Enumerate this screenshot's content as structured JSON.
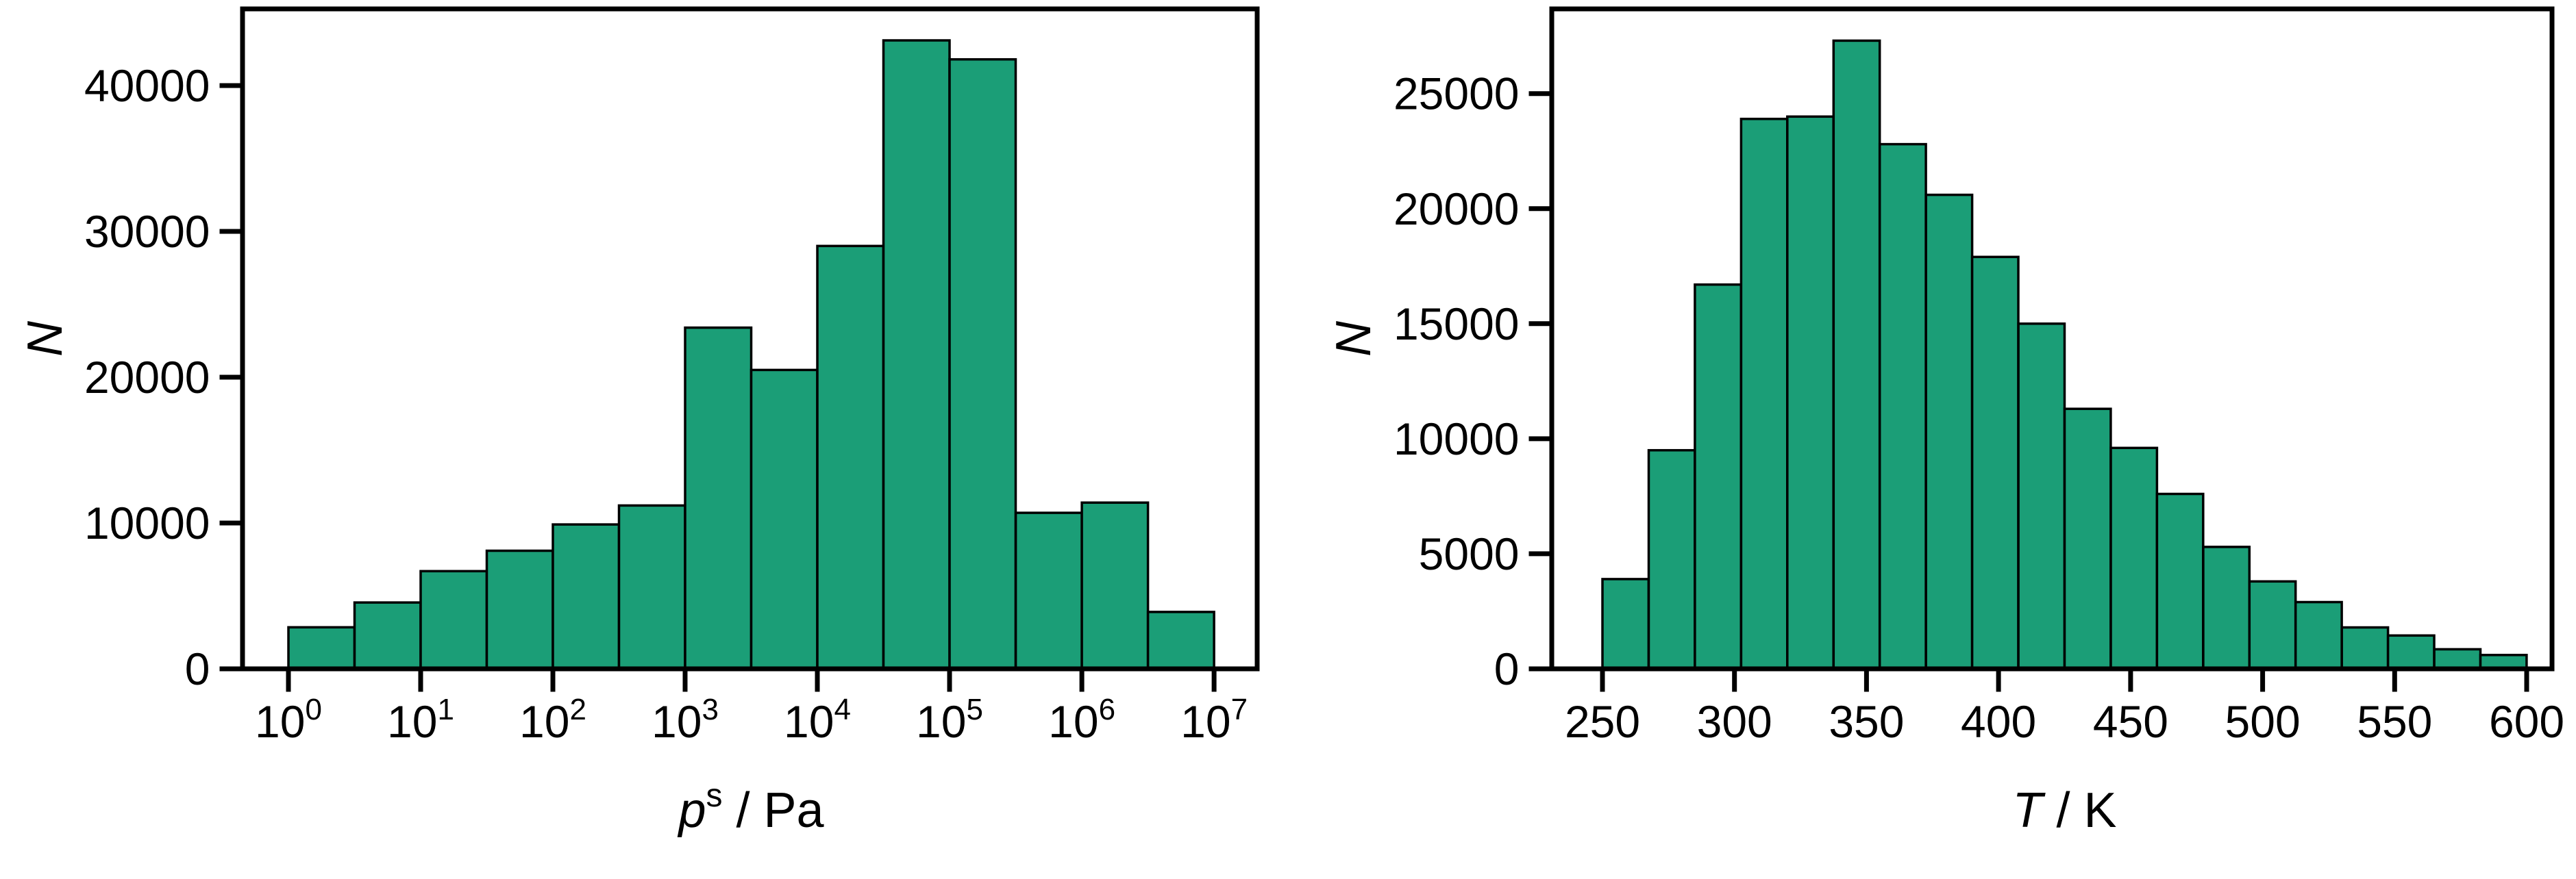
{
  "figure": {
    "background": "#ffffff",
    "frame_color": "#000000",
    "text_color": "#000000"
  },
  "chart_data": [
    {
      "id": "saturation-pressure-histogram",
      "type": "bar",
      "subtype": "histogram",
      "title": "",
      "ylabel": "N",
      "xlabel_parts": {
        "variable": "p",
        "superscript": "s",
        "separator": " / ",
        "unit": "Pa"
      },
      "x_scale": "log10",
      "x_tick_base": "10",
      "x_tick_exponents": [
        0,
        1,
        2,
        3,
        4,
        5,
        6,
        7
      ],
      "y_ticks": [
        0,
        10000,
        20000,
        30000,
        40000
      ],
      "xlim_log10": [
        -0.347,
        7.326
      ],
      "ylim": [
        0,
        45260
      ],
      "bin_edges_log10": [
        0,
        0.5,
        1,
        1.5,
        2,
        2.5,
        3,
        3.5,
        4,
        4.5,
        5,
        5.5,
        6,
        6.5,
        7
      ],
      "counts": [
        2850,
        4550,
        6700,
        8100,
        9900,
        11200,
        23400,
        20500,
        29000,
        43100,
        41800,
        10700,
        11400,
        3900
      ],
      "bar_fill": "#1b9e77",
      "bar_edge": "#000000",
      "legend": "none",
      "grid": "off"
    },
    {
      "id": "temperature-histogram",
      "type": "bar",
      "subtype": "histogram",
      "title": "",
      "ylabel": "N",
      "xlabel_parts": {
        "variable": "T",
        "separator": " / ",
        "unit": "K"
      },
      "x_scale": "linear",
      "x_ticks": [
        250,
        300,
        350,
        400,
        450,
        500,
        550,
        600
      ],
      "y_ticks": [
        0,
        5000,
        10000,
        15000,
        20000,
        25000
      ],
      "xlim": [
        230.8,
        609.6
      ],
      "ylim": [
        0,
        28680
      ],
      "bin_edges": [
        250,
        267.5,
        285,
        302.5,
        320,
        337.5,
        355,
        372.5,
        390,
        407.5,
        425,
        442.5,
        460,
        477.5,
        495,
        512.5,
        530,
        547.5,
        565,
        582.5,
        600
      ],
      "counts": [
        3900,
        9500,
        16700,
        23900,
        24000,
        27300,
        22800,
        20600,
        17900,
        15000,
        11300,
        9600,
        7600,
        5300,
        3800,
        2900,
        1800,
        1450,
        850,
        600
      ],
      "bar_fill": "#1b9e77",
      "bar_edge": "#000000",
      "legend": "none",
      "grid": "off"
    }
  ]
}
